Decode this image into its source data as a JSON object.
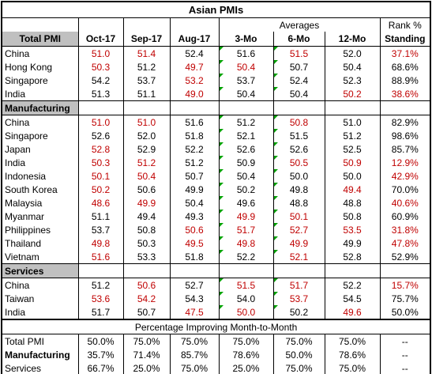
{
  "title": "Asian PMIs",
  "header": {
    "averages": "Averages",
    "rank": "Rank %",
    "columns": [
      "Oct-17",
      "Sep-17",
      "Aug-17",
      "3-Mo",
      "6-Mo",
      "12-Mo",
      "Standing"
    ]
  },
  "sections": [
    {
      "name": "Total PMI",
      "rows": [
        {
          "label": "China",
          "cells": [
            "51.0",
            "51.4",
            "52.4",
            "51.6",
            "51.5",
            "52.0",
            "37.1%"
          ],
          "colors": [
            "#c00000",
            "#c00000",
            "#000000",
            "#000000",
            "#c00000",
            "#000000",
            "#c00000"
          ]
        },
        {
          "label": "Hong Kong",
          "cells": [
            "50.3",
            "51.2",
            "49.7",
            "50.4",
            "50.7",
            "50.4",
            "68.6%"
          ],
          "colors": [
            "#c00000",
            "#000000",
            "#c00000",
            "#c00000",
            "#000000",
            "#000000",
            "#000000"
          ]
        },
        {
          "label": "Singapore",
          "cells": [
            "54.2",
            "53.7",
            "53.2",
            "53.7",
            "52.4",
            "52.3",
            "88.9%"
          ],
          "colors": [
            "#000000",
            "#000000",
            "#c00000",
            "#000000",
            "#000000",
            "#000000",
            "#000000"
          ]
        },
        {
          "label": "India",
          "cells": [
            "51.3",
            "51.1",
            "49.0",
            "50.4",
            "50.4",
            "50.2",
            "38.6%"
          ],
          "colors": [
            "#000000",
            "#000000",
            "#c00000",
            "#000000",
            "#000000",
            "#c00000",
            "#c00000"
          ]
        }
      ]
    },
    {
      "name": "Manufacturing",
      "rows": [
        {
          "label": "China",
          "cells": [
            "51.0",
            "51.0",
            "51.6",
            "51.2",
            "50.8",
            "51.0",
            "82.9%"
          ],
          "colors": [
            "#c00000",
            "#c00000",
            "#000000",
            "#000000",
            "#c00000",
            "#000000",
            "#000000"
          ]
        },
        {
          "label": "Singapore",
          "cells": [
            "52.6",
            "52.0",
            "51.8",
            "52.1",
            "51.5",
            "51.2",
            "98.6%"
          ],
          "colors": [
            "#000000",
            "#000000",
            "#000000",
            "#000000",
            "#000000",
            "#000000",
            "#000000"
          ]
        },
        {
          "label": "Japan",
          "cells": [
            "52.8",
            "52.9",
            "52.2",
            "52.6",
            "52.6",
            "52.5",
            "85.7%"
          ],
          "colors": [
            "#c00000",
            "#000000",
            "#000000",
            "#000000",
            "#000000",
            "#000000",
            "#000000"
          ]
        },
        {
          "label": "India",
          "cells": [
            "50.3",
            "51.2",
            "51.2",
            "50.9",
            "50.5",
            "50.9",
            "12.9%"
          ],
          "colors": [
            "#c00000",
            "#c00000",
            "#000000",
            "#000000",
            "#c00000",
            "#c00000",
            "#c00000"
          ]
        },
        {
          "label": "Indonesia",
          "cells": [
            "50.1",
            "50.4",
            "50.7",
            "50.4",
            "50.0",
            "50.0",
            "42.9%"
          ],
          "colors": [
            "#c00000",
            "#c00000",
            "#000000",
            "#000000",
            "#000000",
            "#000000",
            "#c00000"
          ]
        },
        {
          "label": "South Korea",
          "cells": [
            "50.2",
            "50.6",
            "49.9",
            "50.2",
            "49.8",
            "49.4",
            "70.0%"
          ],
          "colors": [
            "#c00000",
            "#000000",
            "#000000",
            "#000000",
            "#000000",
            "#c00000",
            "#000000"
          ]
        },
        {
          "label": "Malaysia",
          "cells": [
            "48.6",
            "49.9",
            "50.4",
            "49.6",
            "48.8",
            "48.8",
            "40.6%"
          ],
          "colors": [
            "#c00000",
            "#c00000",
            "#000000",
            "#000000",
            "#000000",
            "#000000",
            "#c00000"
          ]
        },
        {
          "label": "Myanmar",
          "cells": [
            "51.1",
            "49.4",
            "49.3",
            "49.9",
            "50.1",
            "50.8",
            "60.9%"
          ],
          "colors": [
            "#000000",
            "#000000",
            "#000000",
            "#c00000",
            "#c00000",
            "#000000",
            "#000000"
          ]
        },
        {
          "label": "Philippines",
          "cells": [
            "53.7",
            "50.8",
            "50.6",
            "51.7",
            "52.7",
            "53.5",
            "31.8%"
          ],
          "colors": [
            "#000000",
            "#000000",
            "#c00000",
            "#c00000",
            "#c00000",
            "#c00000",
            "#c00000"
          ]
        },
        {
          "label": "Thailand",
          "cells": [
            "49.8",
            "50.3",
            "49.5",
            "49.8",
            "49.9",
            "49.9",
            "47.8%"
          ],
          "colors": [
            "#c00000",
            "#000000",
            "#c00000",
            "#c00000",
            "#c00000",
            "#000000",
            "#c00000"
          ]
        },
        {
          "label": "Vietnam",
          "cells": [
            "51.6",
            "53.3",
            "51.8",
            "52.2",
            "52.1",
            "52.8",
            "52.9%"
          ],
          "colors": [
            "#c00000",
            "#000000",
            "#000000",
            "#000000",
            "#c00000",
            "#000000",
            "#000000"
          ]
        }
      ]
    },
    {
      "name": "Services",
      "rows": [
        {
          "label": "China",
          "cells": [
            "51.2",
            "50.6",
            "52.7",
            "51.5",
            "51.7",
            "52.2",
            "15.7%"
          ],
          "colors": [
            "#000000",
            "#c00000",
            "#000000",
            "#c00000",
            "#c00000",
            "#000000",
            "#c00000"
          ]
        },
        {
          "label": "Taiwan",
          "cells": [
            "53.6",
            "54.2",
            "54.3",
            "54.0",
            "53.7",
            "54.5",
            "75.7%"
          ],
          "colors": [
            "#c00000",
            "#c00000",
            "#000000",
            "#000000",
            "#c00000",
            "#000000",
            "#000000"
          ]
        },
        {
          "label": "India",
          "cells": [
            "51.7",
            "50.7",
            "47.5",
            "50.0",
            "50.2",
            "49.6",
            "50.0%"
          ],
          "colors": [
            "#000000",
            "#000000",
            "#c00000",
            "#c00000",
            "#000000",
            "#c00000",
            "#000000"
          ]
        }
      ]
    }
  ],
  "summary": {
    "title": "Percentage Improving Month-to-Month",
    "rows": [
      {
        "label": "Total PMI",
        "cells": [
          "50.0%",
          "75.0%",
          "75.0%",
          "75.0%",
          "75.0%",
          "75.0%",
          "--"
        ]
      },
      {
        "label": "Manufacturing",
        "cells": [
          "35.7%",
          "71.4%",
          "85.7%",
          "78.6%",
          "50.0%",
          "78.6%",
          "--"
        ]
      },
      {
        "label": "Services",
        "cells": [
          "66.7%",
          "25.0%",
          "75.0%",
          "25.0%",
          "75.0%",
          "75.0%",
          "--"
        ]
      }
    ]
  }
}
